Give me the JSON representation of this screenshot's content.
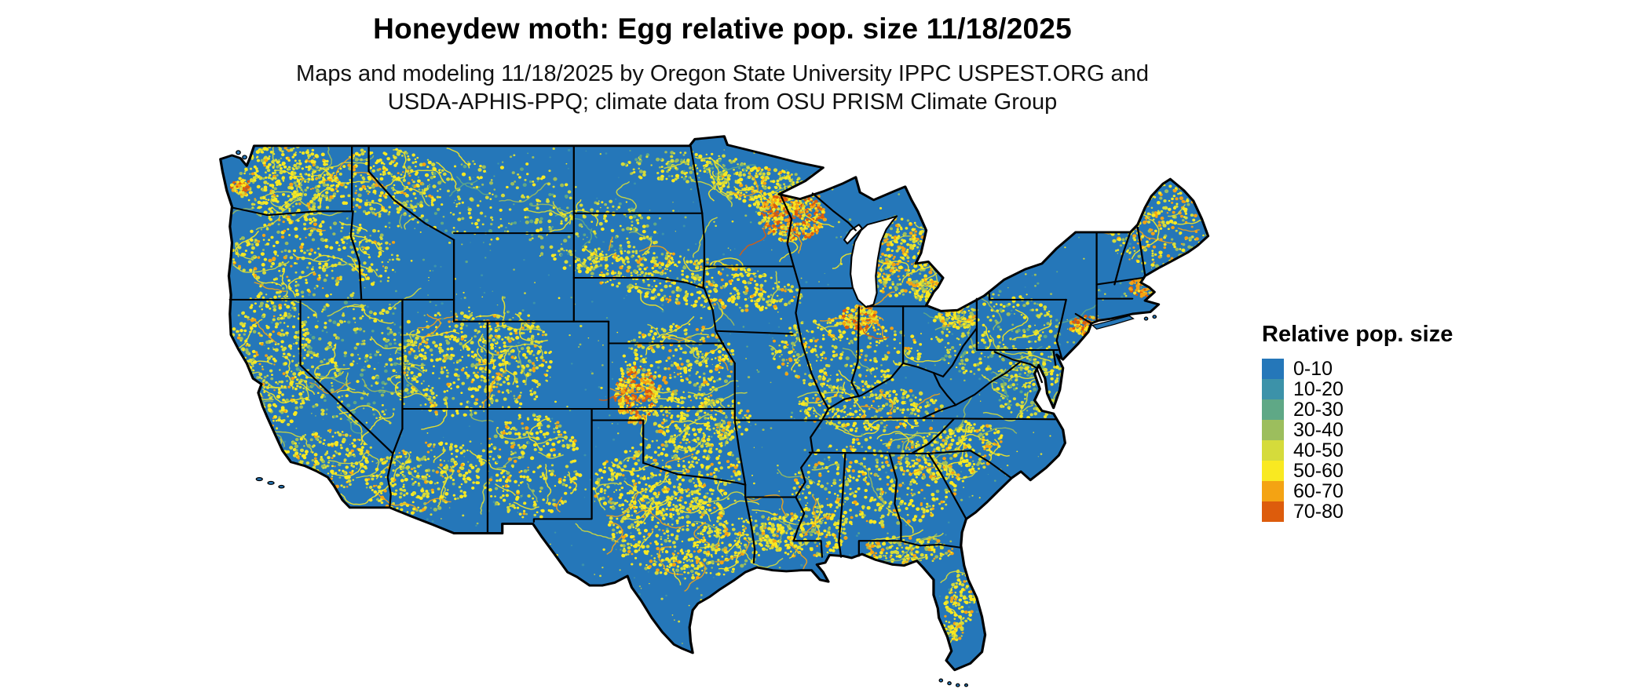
{
  "title": "Honeydew moth: Egg relative pop. size 11/18/2025",
  "subtitle_line1": "Maps and modeling 11/18/2025 by Oregon State University IPPC USPEST.ORG and",
  "subtitle_line2": "USDA-APHIS-PPQ; climate data from OSU PRISM Climate Group",
  "legend": {
    "title": "Relative pop. size",
    "entries": [
      {
        "label": "0-10",
        "color": "#2577B9"
      },
      {
        "label": "10-20",
        "color": "#3C92A9"
      },
      {
        "label": "20-30",
        "color": "#5FA886"
      },
      {
        "label": "30-40",
        "color": "#9CBE5D"
      },
      {
        "label": "40-50",
        "color": "#D5DB3B"
      },
      {
        "label": "50-60",
        "color": "#F9E921"
      },
      {
        "label": "60-70",
        "color": "#F4A313"
      },
      {
        "label": "70-80",
        "color": "#DD5C0C"
      }
    ]
  },
  "map": {
    "base_color": "#2577B9",
    "border_color": "#000000",
    "water_color": "#FFFFFF"
  }
}
